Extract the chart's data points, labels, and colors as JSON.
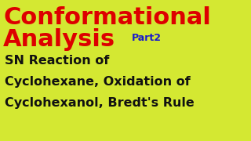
{
  "background_color": "#d4e832",
  "title_line1": "Conformational",
  "title_line2": "Analysis",
  "part_label": "Part2",
  "subtitle_line1": "SN Reaction of",
  "subtitle_line2": "Cyclohexane, Oxidation of",
  "subtitle_line3": "Cyclohexanol, Bredt's Rule",
  "title_color": "#dd0000",
  "part_color": "#1a1acc",
  "subtitle_color": "#111111",
  "title_fontsize": 22,
  "part_fontsize": 9,
  "subtitle_fontsize": 11.5
}
